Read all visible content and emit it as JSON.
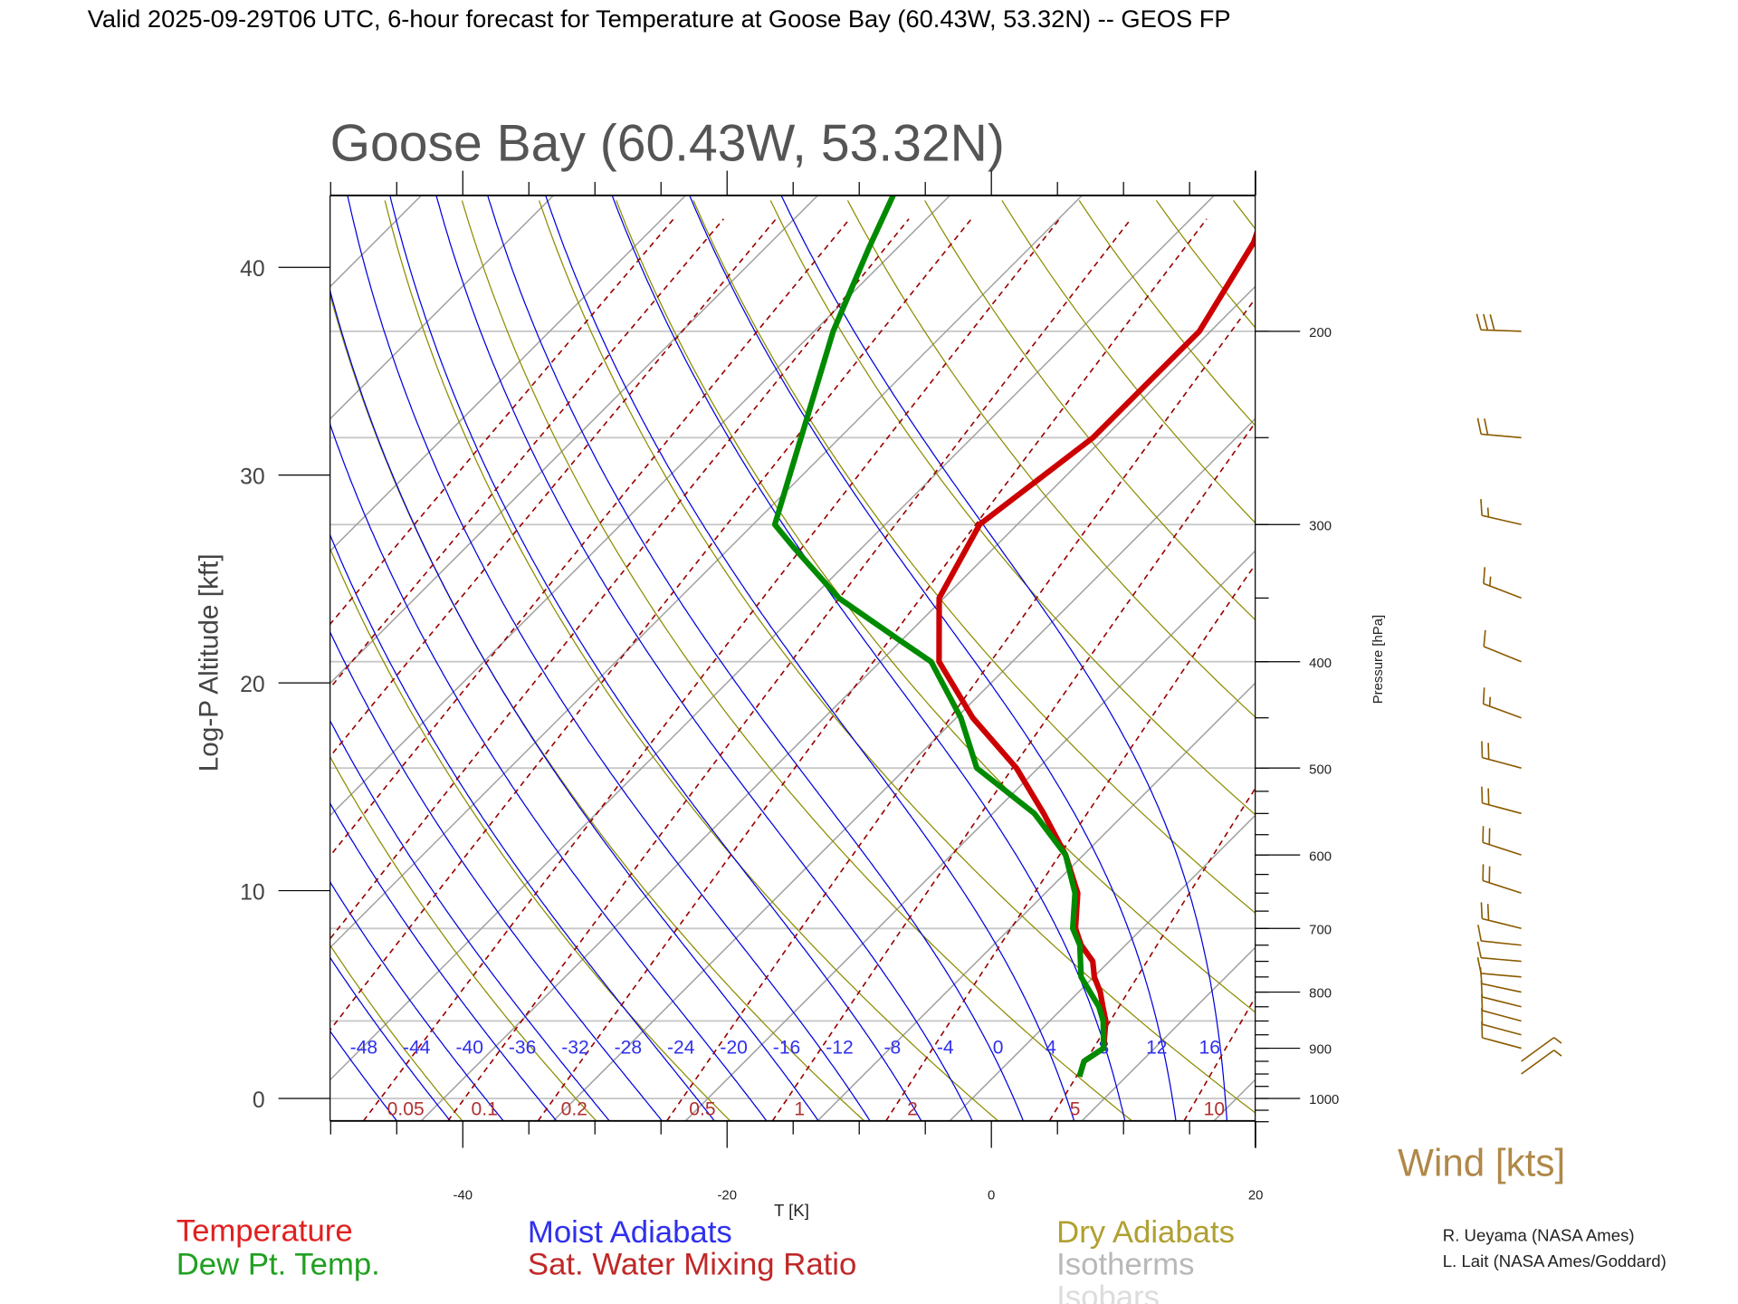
{
  "header": "Valid 2025-09-29T06 UTC, 6-hour forecast for Temperature at Goose Bay (60.43W, 53.32N) -- GEOS FP",
  "chart_data": {
    "type": "line",
    "subtype": "skew-T log-P diagram",
    "title": "Goose Bay (60.43W, 53.32N)",
    "xlabel": "T [K]",
    "ylabel": "Log-P Altitude [kft]",
    "y2label": "Pressure [hPa]",
    "xlim": [
      -50,
      20
    ],
    "plim": [
      1048,
      150
    ],
    "x_ticks": [
      "-40",
      "-20",
      "0",
      "20"
    ],
    "x_tick_values": [
      -40,
      -20,
      0,
      20
    ],
    "altitude_ticks": [
      "0",
      "10",
      "20",
      "30",
      "40"
    ],
    "altitude_tick_values": [
      0,
      10,
      20,
      30,
      40
    ],
    "pressure_ticks": [
      "1000",
      "900",
      "800",
      "700",
      "600",
      "500",
      "400",
      "300",
      "200"
    ],
    "pressure_tick_values": [
      1000,
      900,
      800,
      700,
      600,
      500,
      400,
      300,
      200
    ],
    "isobars_hpa": [
      1000,
      850,
      700,
      500,
      400,
      300,
      250,
      200
    ],
    "moist_adiabat_labels": [
      "-48",
      "-44",
      "-40",
      "-36",
      "-32",
      "-28",
      "-24",
      "-20",
      "-16",
      "-12",
      "-8",
      "-4",
      "0",
      "4",
      "8",
      "12",
      "16"
    ],
    "moist_adiabat_values": [
      -48,
      -44,
      -40,
      -36,
      -32,
      -28,
      -24,
      -20,
      -16,
      -12,
      -8,
      -4,
      0,
      4,
      8,
      12,
      16
    ],
    "mixing_ratio_labels": [
      "0.05",
      "0.1",
      "0.2",
      "0.5",
      "1",
      "2",
      "5",
      "10"
    ],
    "mixing_ratio_values": [
      0.05,
      0.1,
      0.2,
      0.5,
      1,
      2,
      5,
      10
    ],
    "mixing_ratio_extra_lines": [
      0.0005,
      0.001,
      0.002,
      0.005,
      0.01,
      0.02,
      20,
      50
    ],
    "series": [
      {
        "name": "Temperature",
        "color": "#cc0000",
        "points": [
          [
            150,
            -49
          ],
          [
            166,
            -46.6
          ],
          [
            200,
            -44.0
          ],
          [
            250,
            -44.0
          ],
          [
            300,
            -46.0
          ],
          [
            350,
            -43.5
          ],
          [
            400,
            -38.7
          ],
          [
            450,
            -31.9
          ],
          [
            500,
            -24.8
          ],
          [
            550,
            -19.3
          ],
          [
            600,
            -14.5
          ],
          [
            650,
            -10.7
          ],
          [
            700,
            -8.2
          ],
          [
            725,
            -6.5
          ],
          [
            750,
            -4.4
          ],
          [
            775,
            -3.1
          ],
          [
            800,
            -1.5
          ],
          [
            825,
            -0.2
          ],
          [
            850,
            1.1
          ],
          [
            900,
            3.0
          ],
          [
            925,
            2.5
          ],
          [
            955,
            3.3
          ]
        ]
      },
      {
        "name": "Dew Pt. Temp.",
        "color": "#008a00",
        "points": [
          [
            150,
            -77.5
          ],
          [
            168,
            -75.3
          ],
          [
            200,
            -71.7
          ],
          [
            300,
            -61.5
          ],
          [
            314,
            -58.5
          ],
          [
            350,
            -51.1
          ],
          [
            382,
            -43.4
          ],
          [
            400,
            -39.3
          ],
          [
            450,
            -32.8
          ],
          [
            500,
            -27.8
          ],
          [
            550,
            -20.0
          ],
          [
            600,
            -14.5
          ],
          [
            650,
            -10.9
          ],
          [
            700,
            -8.4
          ],
          [
            725,
            -6.6
          ],
          [
            775,
            -4.1
          ],
          [
            825,
            -0.5
          ],
          [
            850,
            0.9
          ],
          [
            900,
            3.0
          ],
          [
            925,
            2.5
          ],
          [
            955,
            3.3
          ]
        ]
      }
    ],
    "winds_label": "Wind [kts]",
    "winds": [
      {
        "p": 200,
        "dir": 272,
        "speed": 30
      },
      {
        "p": 250,
        "dir": 275,
        "speed": 20
      },
      {
        "p": 300,
        "dir": 283,
        "speed": 15
      },
      {
        "p": 350,
        "dir": 291,
        "speed": 15
      },
      {
        "p": 400,
        "dir": 292,
        "speed": 10
      },
      {
        "p": 450,
        "dir": 290,
        "speed": 15
      },
      {
        "p": 500,
        "dir": 285,
        "speed": 20
      },
      {
        "p": 550,
        "dir": 285,
        "speed": 20
      },
      {
        "p": 600,
        "dir": 288,
        "speed": 20
      },
      {
        "p": 650,
        "dir": 288,
        "speed": 20
      },
      {
        "p": 700,
        "dir": 284,
        "speed": 20
      },
      {
        "p": 725,
        "dir": 276,
        "speed": 10
      },
      {
        "p": 750,
        "dir": 275,
        "speed": 10
      },
      {
        "p": 775,
        "dir": 275,
        "speed": 10
      },
      {
        "p": 800,
        "dir": 282,
        "speed": 10
      },
      {
        "p": 825,
        "dir": 284,
        "speed": 10
      },
      {
        "p": 850,
        "dir": 285,
        "speed": 10
      },
      {
        "p": 875,
        "dir": 285,
        "speed": 10
      },
      {
        "p": 900,
        "dir": 285,
        "speed": 10
      },
      {
        "p": 925,
        "dir": 54,
        "speed": 5
      },
      {
        "p": 950,
        "dir": 54,
        "speed": 5
      }
    ],
    "legend": {
      "temperature": "Temperature",
      "dewpoint": "Dew Pt. Temp.",
      "moist": "Moist Adiabats",
      "mixing": "Sat. Water Mixing Ratio",
      "dry": "Dry Adiabats",
      "isotherms": "Isotherms",
      "isobars": "Isobars"
    },
    "colors": {
      "temperature": "#cc0000",
      "dewpoint": "#008a00",
      "moist": "#0000e0",
      "mixing": "#990000",
      "dry": "#8c8c00",
      "isotherm": "#a0a0a0",
      "isobar": "#c8c8c8",
      "wind": "#8b5a00"
    }
  },
  "credits": [
    "R. Ueyama (NASA Ames)",
    "L. Lait (NASA Ames/Goddard)"
  ]
}
